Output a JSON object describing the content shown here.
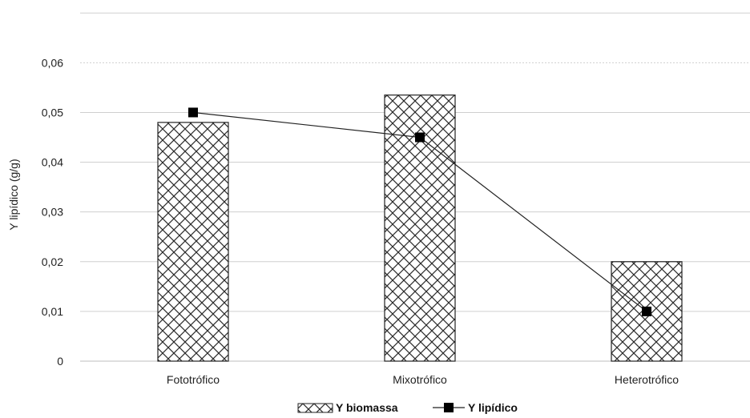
{
  "chart_data": {
    "type": "bar",
    "categories": [
      "Fototrófico",
      "Mixotrófico",
      "Heterotrófico"
    ],
    "ylabel": "Y lipídico (g/g)",
    "ylim": [
      0,
      0.07
    ],
    "yticks": [
      0,
      0.01,
      0.02,
      0.03,
      0.04,
      0.05,
      0.06
    ],
    "ytick_labels": [
      "0",
      "0,01",
      "0,02",
      "0,03",
      "0,04",
      "0,05",
      "0,06"
    ],
    "grid": true,
    "legend_position": "bottom",
    "series": [
      {
        "name": "Y biomassa",
        "type": "bar",
        "pattern": "cross-hatch",
        "values": [
          0.048,
          0.0535,
          0.02
        ]
      },
      {
        "name": "Y lipídico",
        "type": "line",
        "marker": "square",
        "values": [
          0.05,
          0.045,
          0.01
        ]
      }
    ],
    "colors": {
      "bar_fill": "#ffffff",
      "bar_stroke": "#222222",
      "line": "#222222",
      "marker": "#000000",
      "grid": "#cfcfcf"
    }
  }
}
